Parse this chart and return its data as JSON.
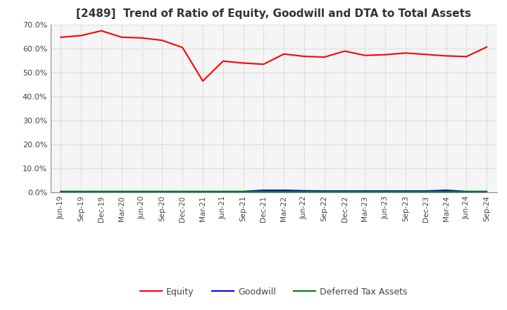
{
  "title": "[2489]  Trend of Ratio of Equity, Goodwill and DTA to Total Assets",
  "x_labels": [
    "Jun-19",
    "Sep-19",
    "Dec-19",
    "Mar-20",
    "Jun-20",
    "Sep-20",
    "Dec-20",
    "Mar-21",
    "Jun-21",
    "Sep-21",
    "Dec-21",
    "Mar-22",
    "Jun-22",
    "Sep-22",
    "Dec-22",
    "Mar-23",
    "Jun-23",
    "Sep-23",
    "Dec-23",
    "Mar-24",
    "Jun-24",
    "Sep-24"
  ],
  "equity": [
    0.648,
    0.655,
    0.675,
    0.648,
    0.645,
    0.635,
    0.605,
    0.465,
    0.548,
    0.54,
    0.535,
    0.578,
    0.568,
    0.565,
    0.59,
    0.572,
    0.575,
    0.582,
    0.576,
    0.57,
    0.567,
    0.607
  ],
  "goodwill": [
    0.003,
    0.003,
    0.003,
    0.003,
    0.003,
    0.003,
    0.003,
    0.003,
    0.003,
    0.003,
    0.008,
    0.008,
    0.006,
    0.005,
    0.005,
    0.005,
    0.005,
    0.005,
    0.005,
    0.008,
    0.003,
    0.003
  ],
  "dta": [
    0.001,
    0.001,
    0.001,
    0.001,
    0.001,
    0.001,
    0.001,
    0.001,
    0.001,
    0.001,
    0.001,
    0.001,
    0.001,
    0.001,
    0.001,
    0.001,
    0.001,
    0.001,
    0.001,
    0.001,
    0.001,
    0.001
  ],
  "equity_color": "#FF0000",
  "goodwill_color": "#0000FF",
  "dta_color": "#008000",
  "ylim": [
    0.0,
    0.7
  ],
  "yticks": [
    0.0,
    0.1,
    0.2,
    0.3,
    0.4,
    0.5,
    0.6,
    0.7
  ],
  "bg_color": "#FFFFFF",
  "plot_bg_color": "#F5F5F5",
  "grid_color": "#BBBBBB",
  "legend_labels": [
    "Equity",
    "Goodwill",
    "Deferred Tax Assets"
  ],
  "title_color": "#333333"
}
